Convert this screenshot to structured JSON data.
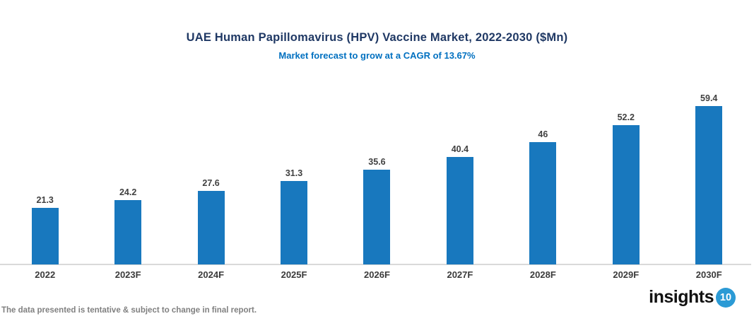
{
  "chart": {
    "title": "UAE Human Papillomavirus (HPV) Vaccine Market, 2022-2030 ($Mn)",
    "subtitle": "Market forecast to grow at a CAGR of 13.67%"
  },
  "chart_data": {
    "type": "bar",
    "title": "UAE Human Papillomavirus (HPV) Vaccine Market, 2022-2030 ($Mn)",
    "subtitle": "Market forecast to grow at a CAGR of 13.67%",
    "categories": [
      "2022",
      "2023F",
      "2024F",
      "2025F",
      "2026F",
      "2027F",
      "2028F",
      "2029F",
      "2030F"
    ],
    "values": [
      21.3,
      24.2,
      27.6,
      31.3,
      35.6,
      40.4,
      46,
      52.2,
      59.4
    ],
    "value_labels": [
      "21.3",
      "24.2",
      "27.6",
      "31.3",
      "35.6",
      "40.4",
      "46",
      "52.2",
      "59.4"
    ],
    "cagr": "13.67%",
    "xlabel": "",
    "ylabel": "",
    "ylim": [
      0,
      62
    ],
    "grid": false,
    "legend": false,
    "y_axis_visible": false,
    "data_labels_position": "above-bars"
  },
  "footer": {
    "note": "The data presented is tentative & subject to change in final report.",
    "logo_text": "insights",
    "logo_badge": "10"
  },
  "colors": {
    "title": "#1F3864",
    "subtitle": "#0070C0",
    "bar": "#1878BE",
    "value_label": "#404040",
    "category_label": "#3B3B3B",
    "axis_line": "#D9D9D9",
    "footnote": "#808080",
    "logo_text": "#111111",
    "logo_badge_bg": "#2B9AD5",
    "logo_badge_text": "#FFFFFF",
    "background": "#FFFFFF"
  }
}
